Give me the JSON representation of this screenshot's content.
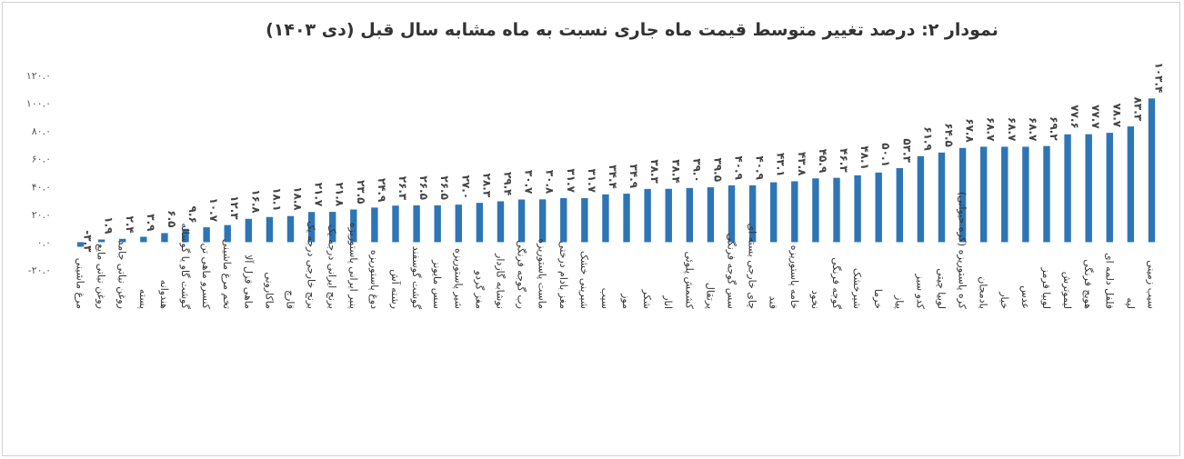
{
  "chart_data": {
    "type": "bar",
    "title": "نمودار ۲: درصد تغییر متوسط قیمت ماه جاری نسبت به ماه مشابه سال قبل (دی ۱۴۰۳)",
    "xlabel": "",
    "ylabel": "",
    "ylim": [
      -20,
      120
    ],
    "yticks": [
      -20,
      0,
      20,
      40,
      60,
      80,
      100,
      120
    ],
    "ytick_labels": [
      "-۲۰.۰",
      "۰.۰",
      "۲۰.۰",
      "۴۰.۰",
      "۶۰.۰",
      "۸۰.۰",
      "۱۰۰.۰",
      "۱۲۰.۰"
    ],
    "grid": false,
    "legend": "none",
    "bar_color": "#2e75b6",
    "categories": [
      "مرغ ماشینی",
      "روغن نباتی مایع",
      "روغن نباتی جامد",
      "پسته",
      "هندوانه",
      "گوشت گاو یا گوساله",
      "کنسرو ماهی تن",
      "تخم مرغ ماشینی",
      "ماهی قزل آلا",
      "ماکارونی",
      "قارچ",
      "برنج خارجی درجه یک",
      "برنج ایرانی درجه یک",
      "پنیر ایرانی پاستوریزه",
      "دوغ پاستوریزه",
      "رشته آش",
      "گوشت گوسفند",
      "سس مایونز",
      "شیر پاستوریزه",
      "مغز گردو",
      "نوشابه گازدار",
      "رب گوجه فرنگی",
      "ماست پاستوریزه",
      "مغز بادام درختی",
      "شیرینی خشک",
      "سیب",
      "موز",
      "شکر",
      "انار",
      "کشمش پلوئی",
      "پرتقال",
      "سس گوجه فرنگی",
      "چای خارجی بسته ای",
      "قند",
      "خامه پاستوریزه",
      "نخود",
      "گوجه فرنگی",
      "شیرخشک",
      "خرما",
      "پیاز",
      "کدو سبز",
      "لوبیا چیتی",
      "کره پاستوریزه (کره حیوانی)",
      "بادمجان",
      "خیار",
      "عدس",
      "لوبیا قرمز",
      "لیموترش",
      "هویج فرنگی",
      "فلفل دلمه ای",
      "لپه",
      "سیب زمینی"
    ],
    "values": [
      -3.3,
      1.9,
      2.4,
      3.9,
      6.5,
      9.6,
      10.7,
      12.3,
      16.8,
      18.1,
      18.8,
      21.7,
      21.8,
      23.5,
      24.9,
      26.3,
      26.5,
      26.5,
      27.0,
      28.3,
      29.4,
      30.7,
      30.8,
      31.7,
      31.7,
      34.4,
      34.9,
      38.3,
      38.4,
      39.0,
      39.5,
      40.9,
      40.9,
      43.1,
      43.8,
      45.9,
      46.3,
      48.1,
      50.1,
      53.3,
      61.9,
      64.5,
      67.8,
      68.7,
      68.7,
      68.7,
      69.2,
      77.6,
      77.7,
      78.7,
      83.3,
      103.4
    ],
    "value_labels": [
      "-۳.۳",
      "۱.۹",
      "۲.۴",
      "۳.۹",
      "۶.۵",
      "۹.۶",
      "۱۰.۷",
      "۱۲.۳",
      "۱۶.۸",
      "۱۸.۱",
      "۱۸.۸",
      "۲۱.۷",
      "۲۱.۸",
      "۲۳.۵",
      "۲۴.۹",
      "۲۶.۳",
      "۲۶.۵",
      "۲۶.۵",
      "۲۷.۰",
      "۲۸.۳",
      "۲۹.۴",
      "۳۰.۷",
      "۳۰.۸",
      "۳۱.۷",
      "۳۱.۷",
      "۳۴.۴",
      "۳۴.۹",
      "۳۸.۳",
      "۳۸.۴",
      "۳۹.۰",
      "۳۹.۵",
      "۴۰.۹",
      "۴۰.۹",
      "۴۳.۱",
      "۴۳.۸",
      "۴۵.۹",
      "۴۶.۳",
      "۴۸.۱",
      "۵۰.۱",
      "۵۳.۳",
      "۶۱.۹",
      "۶۴.۵",
      "۶۷.۸",
      "۶۸.۷",
      "۶۸.۷",
      "۶۸.۷",
      "۶۹.۲",
      "۷۷.۶",
      "۷۷.۷",
      "۷۸.۷",
      "۸۳.۳",
      "۱۰۳.۴"
    ]
  }
}
